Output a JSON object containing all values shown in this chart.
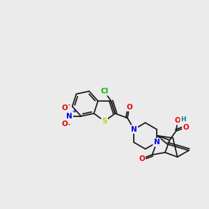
{
  "bg_color": "#ebebeb",
  "bond_color": "#1a1a1a",
  "atom_colors": {
    "Cl": "#00bb00",
    "S": "#cccc00",
    "N": "#0000ee",
    "O": "#ee0000",
    "H": "#008888",
    "C": "#1a1a1a"
  },
  "figsize": [
    3.0,
    3.0
  ],
  "dpi": 100,
  "lw": 1.3,
  "fs": 7.5
}
